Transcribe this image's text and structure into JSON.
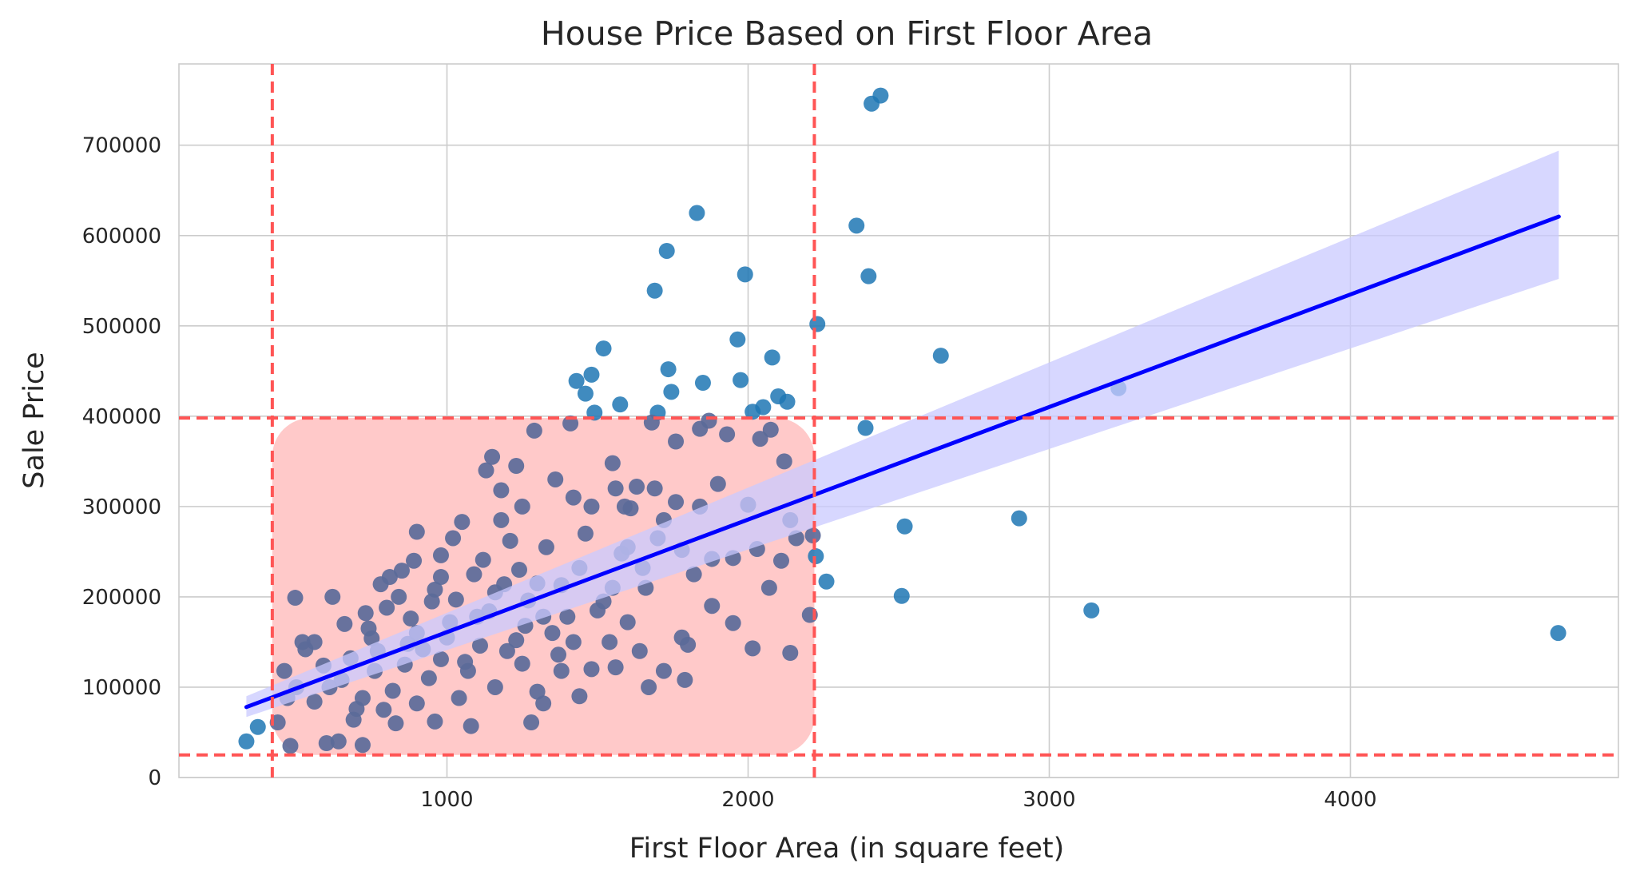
{
  "chart_data": {
    "type": "scatter",
    "title": "House Price Based on First Floor Area",
    "xlabel": "First Floor Area (in square feet)",
    "ylabel": "Sale Price",
    "xlim": [
      110,
      4890
    ],
    "ylim": [
      0,
      790000
    ],
    "x_ticks": [
      1000,
      2000,
      3000,
      4000
    ],
    "y_ticks": [
      0,
      100000,
      200000,
      300000,
      400000,
      500000,
      600000,
      700000
    ],
    "grid": true,
    "colors": {
      "points": "#1f77b4",
      "points_inside_band": "#5b6a99",
      "regression_line": "#0000ff",
      "confidence_band": "#c9c9ff",
      "threshold_lines": "#ff5555",
      "highlight_region": "#ffc9c9"
    },
    "thresholds": {
      "x_lower": 420,
      "x_upper": 2220,
      "y_lower": 25000,
      "y_upper": 398000
    },
    "regression": {
      "x": [
        334,
        4692
      ],
      "y": [
        78000,
        621000
      ],
      "ci_lower": [
        67000,
        552000
      ],
      "ci_upper": [
        90000,
        694000
      ]
    },
    "series": [
      {
        "points": [
          [
            334,
            40000
          ],
          [
            372,
            56000
          ],
          [
            438,
            61000
          ],
          [
            480,
            35000
          ],
          [
            496,
            199000
          ],
          [
            460,
            118000
          ],
          [
            470,
            88000
          ],
          [
            600,
            38000
          ],
          [
            640,
            40000
          ],
          [
            720,
            36000
          ],
          [
            1280,
            61000
          ],
          [
            1440,
            90000
          ],
          [
            1690,
            539000
          ],
          [
            1730,
            583000
          ],
          [
            1830,
            625000
          ],
          [
            1990,
            557000
          ],
          [
            1965,
            485000
          ],
          [
            2080,
            465000
          ],
          [
            1520,
            475000
          ],
          [
            1480,
            446000
          ],
          [
            1430,
            439000
          ],
          [
            1460,
            425000
          ],
          [
            1735,
            452000
          ],
          [
            1850,
            437000
          ],
          [
            1975,
            440000
          ],
          [
            1745,
            427000
          ],
          [
            2100,
            422000
          ],
          [
            2130,
            416000
          ],
          [
            1575,
            413000
          ],
          [
            1700,
            404000
          ],
          [
            1490,
            404000
          ],
          [
            2015,
            405000
          ],
          [
            2050,
            410000
          ],
          [
            2230,
            502000
          ],
          [
            2360,
            611000
          ],
          [
            2400,
            555000
          ],
          [
            2410,
            746000
          ],
          [
            2440,
            755000
          ],
          [
            2390,
            387000
          ],
          [
            2640,
            467000
          ],
          [
            2520,
            278000
          ],
          [
            2510,
            201000
          ],
          [
            2900,
            287000
          ],
          [
            3140,
            185000
          ],
          [
            3230,
            431000
          ],
          [
            4690,
            160000
          ],
          [
            2260,
            217000
          ],
          [
            2225,
            245000
          ],
          [
            2215,
            268000
          ],
          [
            2140,
            285000
          ],
          [
            2140,
            138000
          ],
          [
            2205,
            180000
          ],
          [
            2015,
            143000
          ],
          [
            2070,
            210000
          ],
          [
            2110,
            240000
          ],
          [
            2120,
            350000
          ],
          [
            1670,
            100000
          ],
          [
            1790,
            108000
          ],
          [
            1880,
            190000
          ],
          [
            1950,
            171000
          ],
          [
            2000,
            302000
          ],
          [
            1840,
            386000
          ],
          [
            1930,
            380000
          ],
          [
            1870,
            395000
          ],
          [
            2075,
            385000
          ],
          [
            2040,
            375000
          ],
          [
            1680,
            393000
          ],
          [
            1410,
            392000
          ],
          [
            1290,
            384000
          ],
          [
            1130,
            340000
          ],
          [
            900,
            272000
          ],
          [
            1050,
            283000
          ],
          [
            1180,
            318000
          ],
          [
            1360,
            330000
          ],
          [
            1550,
            348000
          ],
          [
            1630,
            322000
          ],
          [
            1760,
            305000
          ],
          [
            2030,
            253000
          ],
          [
            2160,
            265000
          ],
          [
            1320,
            82000
          ],
          [
            1080,
            57000
          ],
          [
            960,
            62000
          ],
          [
            830,
            60000
          ],
          [
            700,
            76000
          ],
          [
            610,
            100000
          ],
          [
            620,
            200000
          ],
          [
            780,
            214000
          ],
          [
            850,
            229000
          ],
          [
            980,
            246000
          ],
          [
            1120,
            241000
          ],
          [
            1240,
            230000
          ],
          [
            1380,
            213000
          ],
          [
            1520,
            195000
          ],
          [
            1600,
            172000
          ],
          [
            1420,
            150000
          ],
          [
            1260,
            168000
          ],
          [
            1100,
            178000
          ],
          [
            1000,
            155000
          ],
          [
            920,
            142000
          ],
          [
            860,
            125000
          ],
          [
            760,
            118000
          ],
          [
            680,
            132000
          ],
          [
            560,
            150000
          ],
          [
            530,
            142000
          ],
          [
            740,
            165000
          ],
          [
            800,
            188000
          ],
          [
            880,
            176000
          ],
          [
            1030,
            197000
          ],
          [
            1160,
            205000
          ],
          [
            1300,
            215000
          ],
          [
            1440,
            232000
          ],
          [
            1580,
            248000
          ],
          [
            1700,
            265000
          ],
          [
            1780,
            252000
          ],
          [
            1820,
            225000
          ],
          [
            1660,
            210000
          ],
          [
            1500,
            185000
          ],
          [
            1350,
            160000
          ],
          [
            1200,
            140000
          ],
          [
            1060,
            128000
          ],
          [
            940,
            110000
          ],
          [
            820,
            96000
          ],
          [
            720,
            88000
          ],
          [
            650,
            108000
          ],
          [
            590,
            124000
          ],
          [
            770,
            140000
          ],
          [
            900,
            160000
          ],
          [
            1010,
            172000
          ],
          [
            1140,
            184000
          ],
          [
            1270,
            196000
          ],
          [
            1400,
            178000
          ],
          [
            1550,
            210000
          ],
          [
            1650,
            232000
          ],
          [
            1720,
            285000
          ],
          [
            1610,
            298000
          ],
          [
            1460,
            270000
          ],
          [
            1330,
            255000
          ],
          [
            1210,
            262000
          ],
          [
            1090,
            225000
          ],
          [
            960,
            208000
          ],
          [
            840,
            200000
          ],
          [
            730,
            182000
          ],
          [
            660,
            170000
          ],
          [
            980,
            131000
          ],
          [
            1110,
            146000
          ],
          [
            1230,
            152000
          ],
          [
            1370,
            136000
          ],
          [
            1480,
            120000
          ],
          [
            1560,
            122000
          ],
          [
            1640,
            140000
          ],
          [
            1780,
            155000
          ],
          [
            1880,
            242000
          ],
          [
            1760,
            372000
          ],
          [
            1690,
            320000
          ],
          [
            1590,
            300000
          ],
          [
            1420,
            310000
          ],
          [
            1250,
            300000
          ],
          [
            1180,
            285000
          ],
          [
            1020,
            265000
          ],
          [
            890,
            240000
          ],
          [
            810,
            222000
          ],
          [
            1300,
            95000
          ],
          [
            1160,
            100000
          ],
          [
            1040,
            88000
          ],
          [
            900,
            82000
          ],
          [
            790,
            75000
          ],
          [
            690,
            64000
          ],
          [
            560,
            84000
          ],
          [
            500,
            100000
          ],
          [
            520,
            150000
          ],
          [
            1600,
            255000
          ],
          [
            1840,
            300000
          ],
          [
            1900,
            325000
          ],
          [
            1950,
            243000
          ],
          [
            1540,
            150000
          ],
          [
            1380,
            118000
          ],
          [
            1720,
            118000
          ],
          [
            1800,
            147000
          ],
          [
            1230,
            345000
          ],
          [
            1150,
            355000
          ],
          [
            1560,
            320000
          ],
          [
            1480,
            300000
          ],
          [
            950,
            195000
          ],
          [
            1190,
            214000
          ],
          [
            1320,
            178000
          ],
          [
            870,
            148000
          ],
          [
            1070,
            118000
          ],
          [
            1250,
            126000
          ],
          [
            750,
            154000
          ],
          [
            980,
            222000
          ]
        ]
      }
    ]
  }
}
